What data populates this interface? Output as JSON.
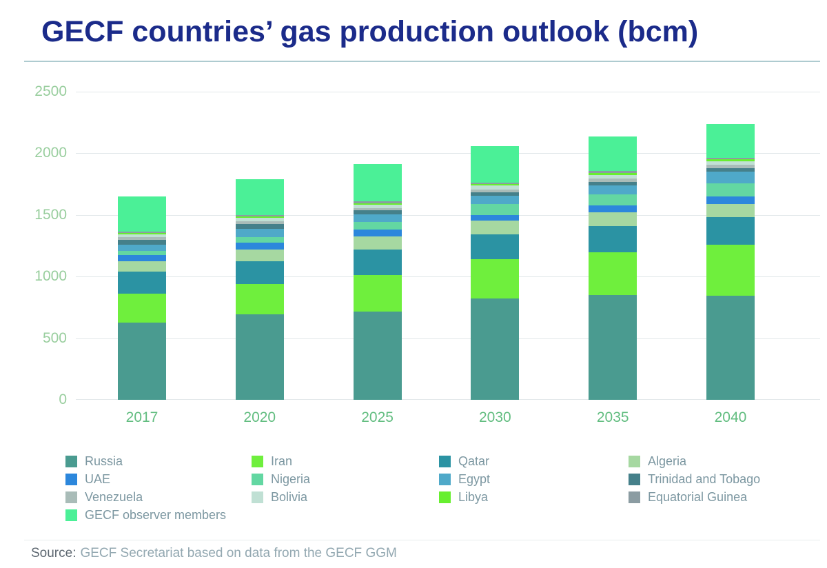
{
  "title": "GECF countries’ gas production outlook (bcm)",
  "source": {
    "prefix": "Source:",
    "text": "GECF Secretariat based on data from the GECF GGM"
  },
  "colors": {
    "title": "#1B2B8A",
    "title_rule": "#AECBD0",
    "gridline": "#E2E8EA",
    "y_tick_label": "#99CE9E",
    "x_tick_label": "#62BD80",
    "legend_text": "#7C97A1",
    "background": "#FFFFFF"
  },
  "chart_data": {
    "type": "bar",
    "stacked": true,
    "title": "GECF countries’ gas production outlook (bcm)",
    "xlabel": "",
    "ylabel": "",
    "ylim": [
      0,
      2500
    ],
    "yticks": [
      0,
      500,
      1000,
      1500,
      2000,
      2500
    ],
    "grid": true,
    "legend_position": "bottom",
    "categories": [
      "2017",
      "2020",
      "2025",
      "2030",
      "2035",
      "2040"
    ],
    "series": [
      {
        "name": "Russia",
        "color": "#4A9B90",
        "values": [
          625,
          695,
          715,
          825,
          848,
          845
        ]
      },
      {
        "name": "Iran",
        "color": "#6FEF3D",
        "values": [
          235,
          245,
          295,
          315,
          350,
          415
        ]
      },
      {
        "name": "Qatar",
        "color": "#2B93A3",
        "values": [
          180,
          185,
          210,
          203,
          214,
          220
        ]
      },
      {
        "name": "Algeria",
        "color": "#A6D8A1",
        "values": [
          85,
          95,
          107,
          112,
          107,
          107
        ]
      },
      {
        "name": "UAE",
        "color": "#2C87DC",
        "values": [
          50,
          55,
          57,
          45,
          56,
          62
        ]
      },
      {
        "name": "Nigeria",
        "color": "#63D7A2",
        "values": [
          35,
          45,
          60,
          90,
          90,
          105
        ]
      },
      {
        "name": "Egypt",
        "color": "#4FA9C9",
        "values": [
          50,
          65,
          62,
          68,
          75,
          100
        ]
      },
      {
        "name": "Trinidad and Tobago",
        "color": "#45808A",
        "values": [
          38,
          40,
          30,
          25,
          28,
          26
        ]
      },
      {
        "name": "Venezuela",
        "color": "#A9BCB8",
        "values": [
          25,
          25,
          20,
          25,
          30,
          30
        ]
      },
      {
        "name": "Bolivia",
        "color": "#C0E0D4",
        "values": [
          20,
          25,
          26,
          30,
          26,
          25
        ]
      },
      {
        "name": "Libya",
        "color": "#67EF2F",
        "values": [
          10,
          12,
          15,
          15,
          15,
          15
        ]
      },
      {
        "name": "Equatorial Guinea",
        "color": "#8B9CA2",
        "values": [
          12,
          13,
          15,
          12,
          16,
          15
        ]
      },
      {
        "name": "GECF observer members",
        "color": "#4BF097",
        "values": [
          285,
          290,
          303,
          295,
          280,
          270
        ]
      }
    ],
    "totals_estimated": [
      1650,
      1790,
      1915,
      2060,
      2135,
      2235
    ]
  },
  "legend": {
    "columns": [
      [
        "Russia",
        "UAE",
        "Venezuela",
        "GECF observer members"
      ],
      [
        "Iran",
        "Nigeria",
        "Bolivia"
      ],
      [
        "Qatar",
        "Egypt",
        "Libya"
      ],
      [
        "Algeria",
        "Trinidad and Tobago",
        "Equatorial Guinea"
      ]
    ]
  }
}
